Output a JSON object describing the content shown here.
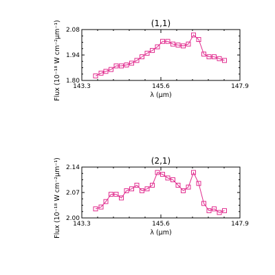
{
  "chart_data": [
    {
      "type": "line",
      "title": "(1,1)",
      "xlabel": "λ (μm)",
      "ylabel": "Flux (10⁻¹⁸ W cm⁻²μm⁻¹)",
      "xlim": [
        143.3,
        147.9
      ],
      "ylim": [
        1.8,
        2.08
      ],
      "xticks": [
        "143.3",
        "145.6",
        "147.9"
      ],
      "yticks": [
        "1.80",
        "1.94",
        "2.08"
      ],
      "grid": false,
      "legend": "none",
      "color": "#e0288c",
      "marker": "square",
      "series": [
        {
          "x": [
            143.7,
            143.86,
            144.0,
            144.15,
            144.3,
            144.45,
            144.6,
            144.75,
            144.9,
            145.05,
            145.2,
            145.35,
            145.5,
            145.65,
            145.8,
            145.95,
            146.1,
            146.25,
            146.4,
            146.55,
            146.7,
            146.85,
            147.0,
            147.15,
            147.3,
            147.45
          ],
          "y": [
            1.825,
            1.84,
            1.85,
            1.86,
            1.88,
            1.88,
            1.885,
            1.895,
            1.91,
            1.93,
            1.95,
            1.965,
            1.985,
            2.015,
            2.015,
            2.0,
            1.995,
            1.99,
            2.0,
            2.05,
            2.025,
            1.945,
            1.93,
            1.93,
            1.92,
            1.91
          ]
        }
      ]
    },
    {
      "type": "line",
      "title": "(2,1)",
      "xlabel": "λ (μm)",
      "ylabel": "Flux (10⁻¹⁸ W cm⁻²μm⁻¹)",
      "xlim": [
        143.3,
        147.9
      ],
      "ylim": [
        2.0,
        2.14
      ],
      "xticks": [
        "143.3",
        "145.6",
        "147.9"
      ],
      "yticks": [
        "2.00",
        "2.07",
        "2.14"
      ],
      "grid": false,
      "legend": "none",
      "color": "#e0288c",
      "marker": "square",
      "series": [
        {
          "x": [
            143.7,
            143.86,
            144.0,
            144.15,
            144.3,
            144.45,
            144.6,
            144.75,
            144.9,
            145.05,
            145.2,
            145.35,
            145.5,
            145.65,
            145.8,
            145.95,
            146.1,
            146.25,
            146.4,
            146.55,
            146.7,
            146.85,
            147.0,
            147.15,
            147.3,
            147.45
          ],
          "y": [
            2.025,
            2.03,
            2.045,
            2.065,
            2.065,
            2.055,
            2.075,
            2.08,
            2.09,
            2.075,
            2.08,
            2.09,
            2.125,
            2.12,
            2.11,
            2.105,
            2.09,
            2.075,
            2.085,
            2.125,
            2.095,
            2.04,
            2.02,
            2.025,
            2.015,
            2.02
          ]
        }
      ]
    }
  ]
}
